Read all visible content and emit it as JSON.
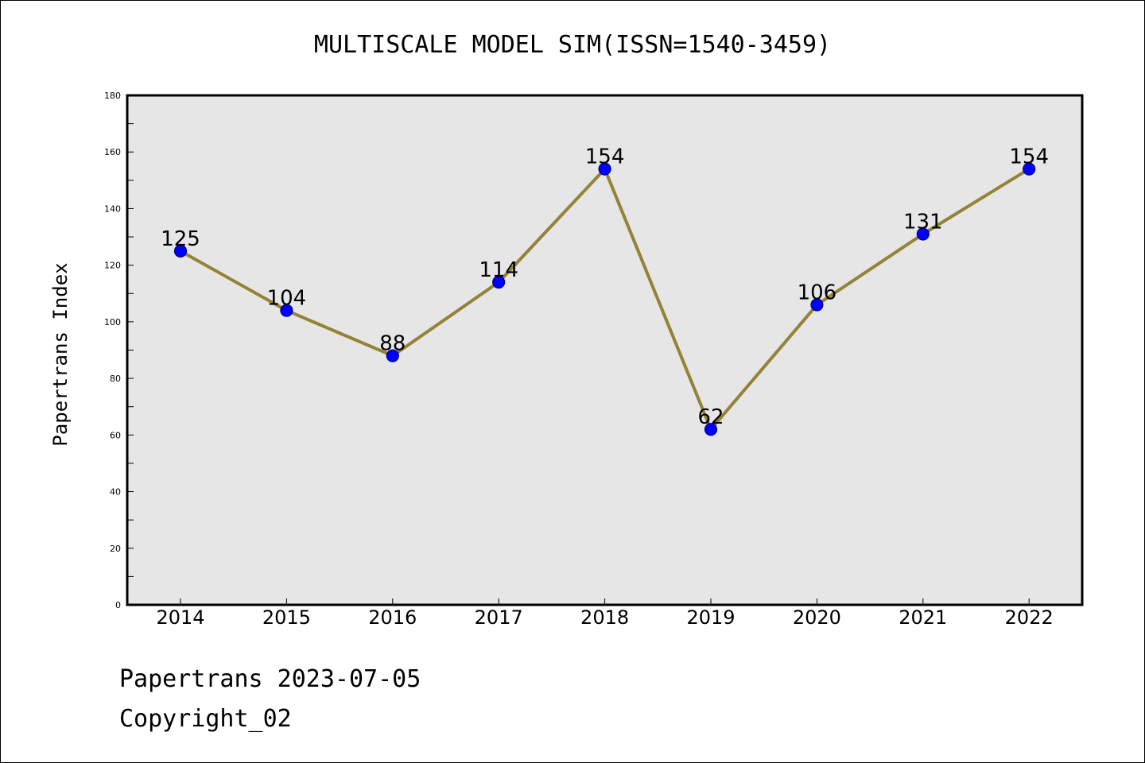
{
  "chart_data": {
    "type": "line",
    "title": "MULTISCALE MODEL SIM(ISSN=1540-3459)",
    "xlabel": "",
    "ylabel": "Papertrans Index",
    "categories": [
      "2014",
      "2015",
      "2016",
      "2017",
      "2018",
      "2019",
      "2020",
      "2021",
      "2022"
    ],
    "series": [
      {
        "values": [
          125,
          104,
          88,
          114,
          154,
          62,
          106,
          131,
          154
        ]
      }
    ],
    "ylim": [
      0,
      180
    ],
    "yticks": [
      0,
      20,
      40,
      60,
      80,
      100,
      120,
      140,
      160,
      180
    ],
    "grid": false,
    "data_labels": true,
    "colors": {
      "line": "#948236",
      "marker_fill": "#0000ff",
      "marker_edge": "#000080",
      "plot_background": "#e6e6e6"
    }
  },
  "footer": {
    "line1": "Papertrans 2023-07-05",
    "line2": "Copyright_02"
  }
}
